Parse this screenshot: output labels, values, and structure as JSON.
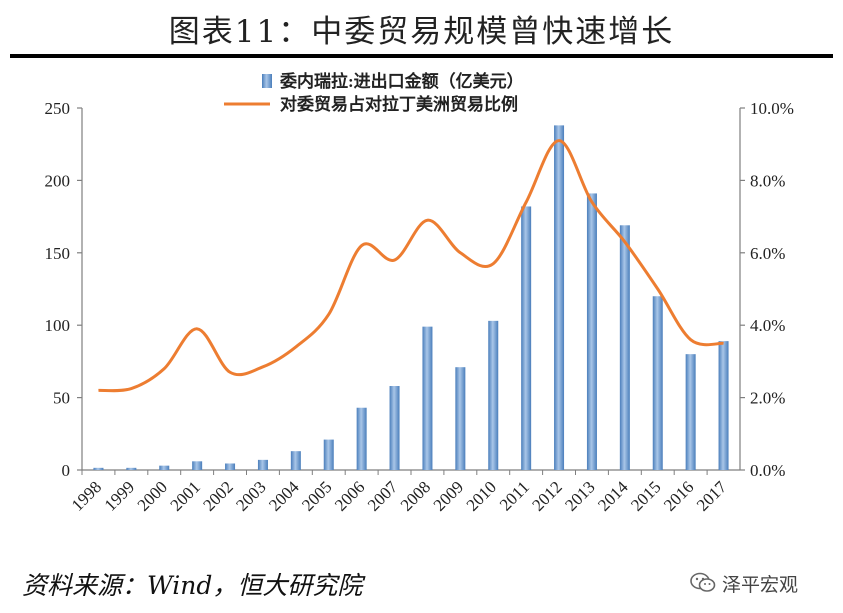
{
  "title": "图表11：中委贸易规模曾快速增长",
  "source": "资料来源：Wind，恒大研究院",
  "watermark": "泽平宏观",
  "colors": {
    "bar": "#4a7ebb",
    "bar_light": "#a9c6e8",
    "line": "#ed7d31",
    "axis": "#7f7f7f"
  },
  "chart_data": {
    "type": "bar+line",
    "categories": [
      "1998",
      "1999",
      "2000",
      "2001",
      "2002",
      "2003",
      "2004",
      "2005",
      "2006",
      "2007",
      "2008",
      "2009",
      "2010",
      "2011",
      "2012",
      "2013",
      "2014",
      "2015",
      "2016",
      "2017"
    ],
    "series": [
      {
        "name": "委内瑞拉:进出口金额（亿美元）",
        "type": "bar",
        "axis": "left",
        "values": [
          1.5,
          1.5,
          3,
          6,
          4.5,
          7,
          13,
          21,
          43,
          58,
          99,
          71,
          103,
          182,
          238,
          191,
          169,
          120,
          80,
          89
        ]
      },
      {
        "name": "对委贸易占对拉丁美洲贸易比例",
        "type": "line",
        "axis": "right",
        "values": [
          2.2,
          2.25,
          2.8,
          3.9,
          2.7,
          2.85,
          3.4,
          4.3,
          6.2,
          5.8,
          6.9,
          6.0,
          5.7,
          7.4,
          9.1,
          7.4,
          6.3,
          5.0,
          3.6,
          3.5
        ]
      }
    ],
    "y_left": {
      "min": 0,
      "max": 250,
      "ticks": [
        "0",
        "50",
        "100",
        "150",
        "200",
        "250"
      ]
    },
    "y_right": {
      "min": 0,
      "max": 10,
      "ticks": [
        "0.0%",
        "2.0%",
        "4.0%",
        "6.0%",
        "8.0%",
        "10.0%"
      ]
    },
    "legend_position": "top-center",
    "grid": false
  }
}
